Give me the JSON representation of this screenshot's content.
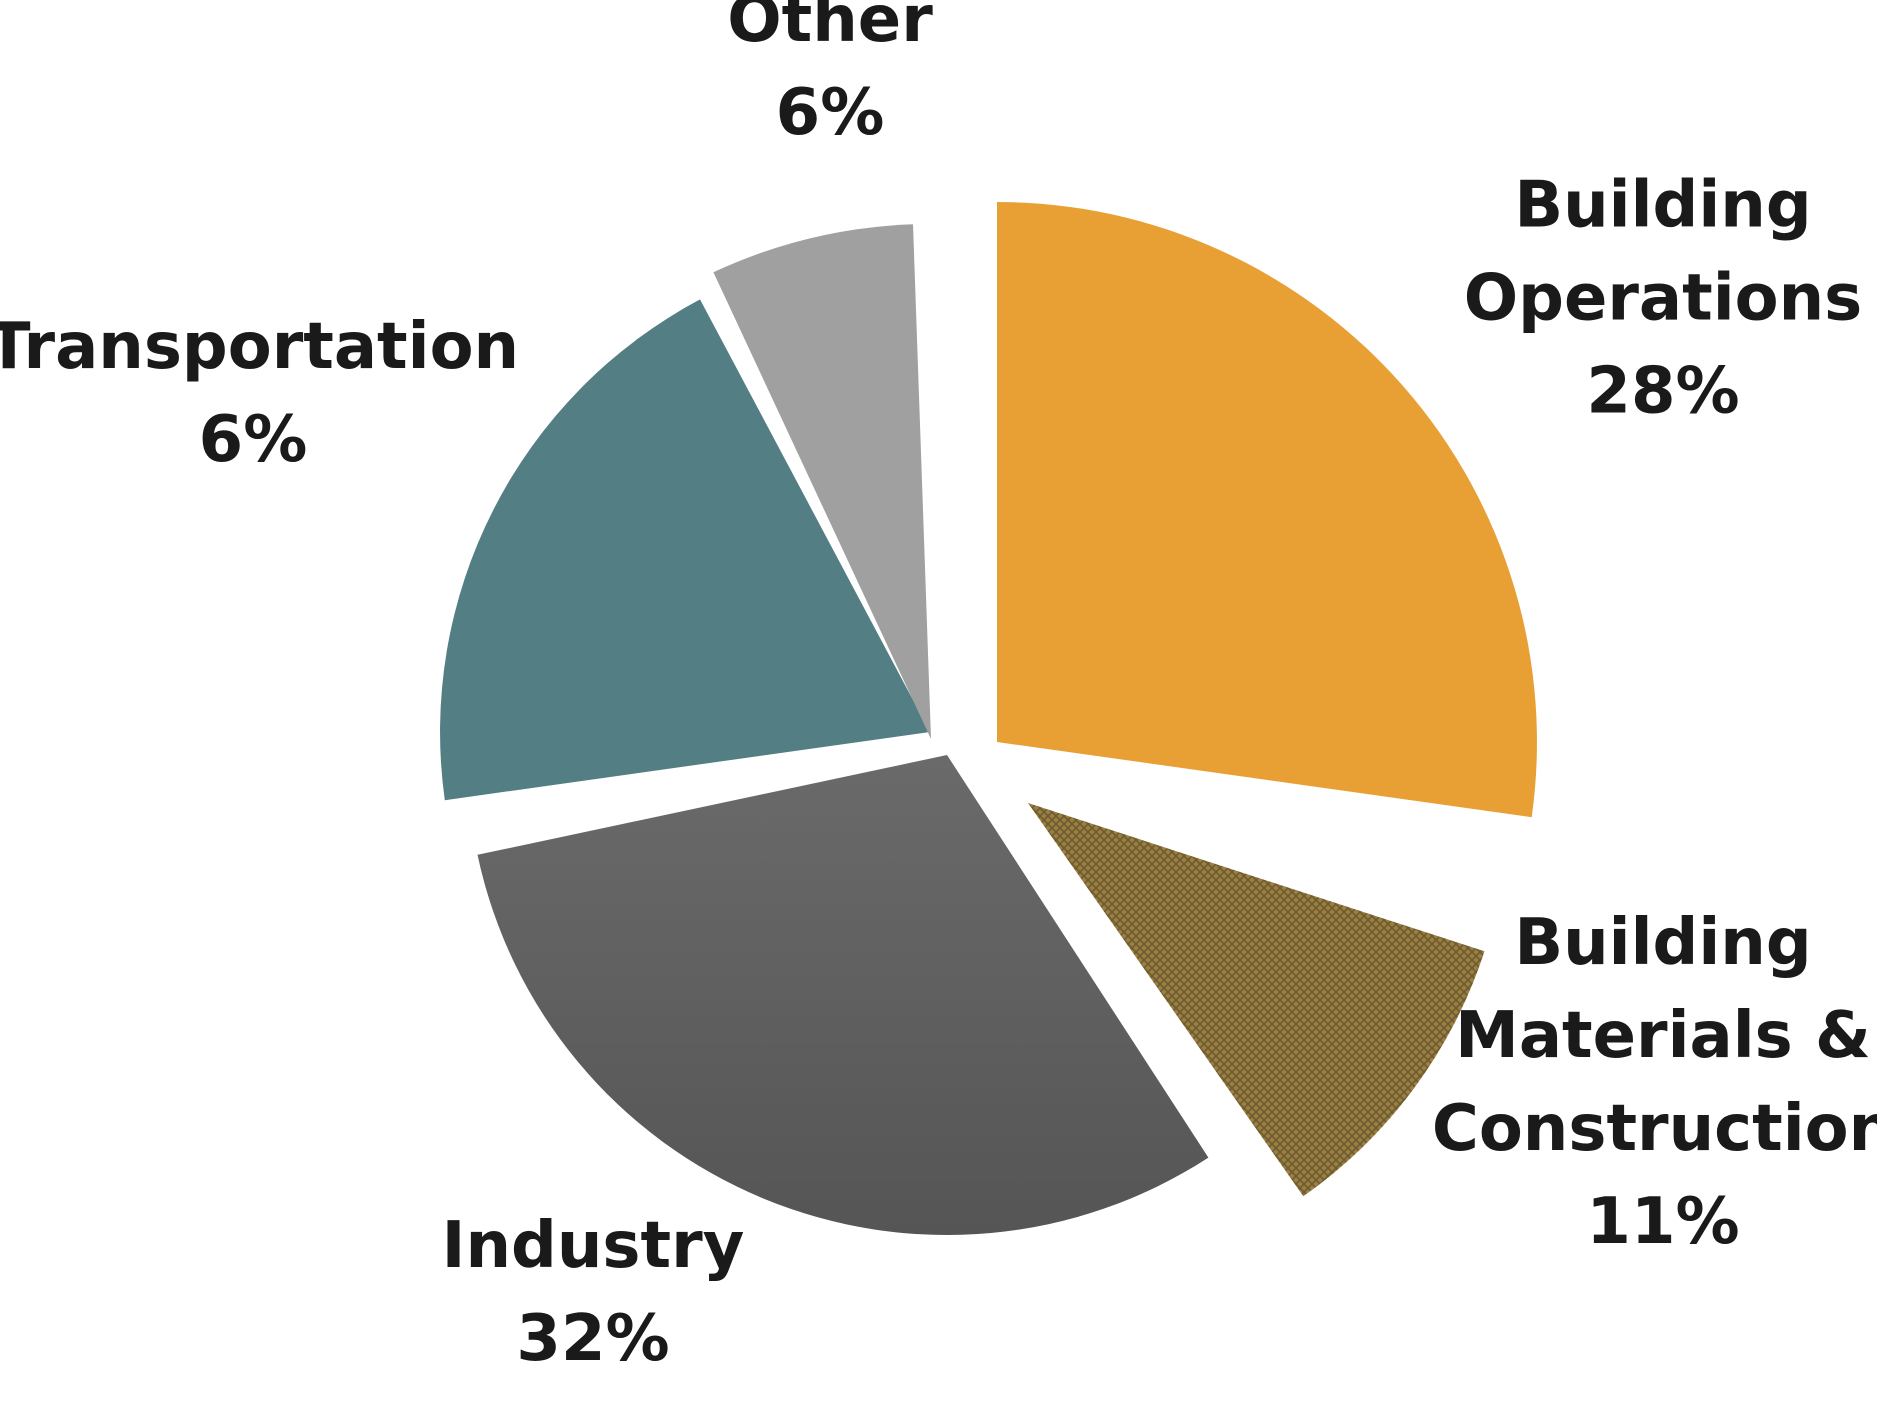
{
  "chart_data": {
    "type": "pie",
    "slices": [
      {
        "label_lines": [
          "Building",
          "Operations"
        ],
        "value_label": "28%",
        "value": 28,
        "color": "#E8A035"
      },
      {
        "label_lines": [
          "Building",
          "Materials &",
          "Construction"
        ],
        "value_label": "11%",
        "value": 11,
        "color": "#8C7440",
        "pattern": "crosshatch"
      },
      {
        "label_lines": [
          "Industry"
        ],
        "value_label": "32%",
        "value": 32,
        "color": "#5E5E5E"
      },
      {
        "label_lines": [
          "Transportation"
        ],
        "value_label": "6%",
        "value": 6,
        "color": "#527E84"
      },
      {
        "label_lines": [
          "Other"
        ],
        "value_label": "6%",
        "value": 6,
        "color": "#A0A0A0"
      }
    ]
  }
}
